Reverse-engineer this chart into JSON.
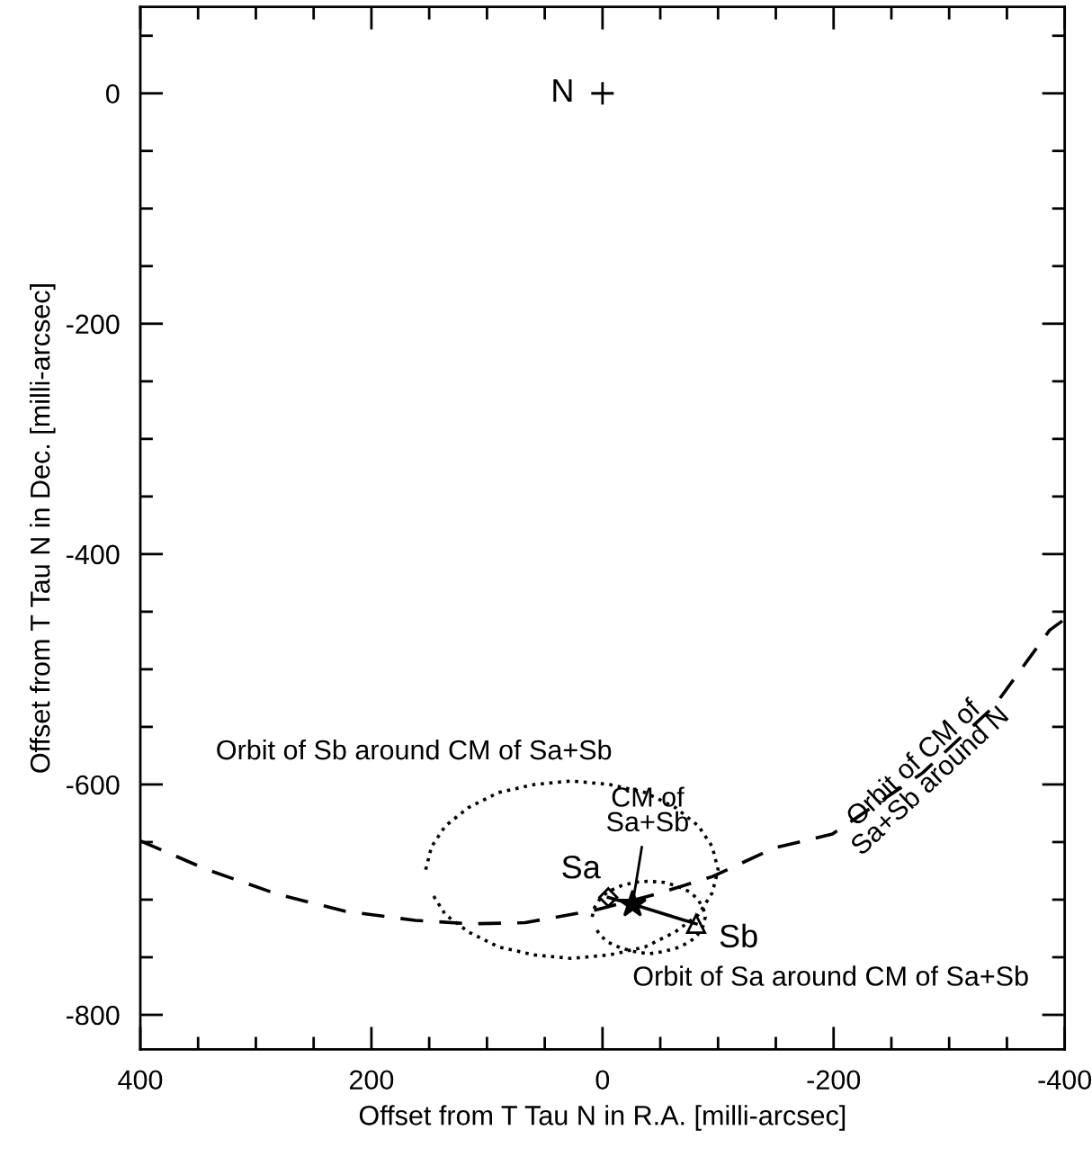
{
  "chart_data": {
    "type": "line",
    "xlabel": "Offset from T Tau N in R.A. [milli-arcsec]",
    "ylabel": "Offset from T Tau N in Dec. [milli-arcsec]",
    "xlim": [
      400,
      -400
    ],
    "ylim": [
      -830,
      75
    ],
    "xticks": [
      400,
      {
        "value": 350,
        "label": null
      },
      {
        "value": 300,
        "label": null
      },
      {
        "value": 250,
        "label": null
      },
      200,
      {
        "value": 150,
        "label": null
      },
      {
        "value": 100,
        "label": null
      },
      {
        "value": 50,
        "label": null
      },
      0,
      {
        "value": -50,
        "label": null
      },
      {
        "value": -100,
        "label": null
      },
      {
        "value": -150,
        "label": null
      },
      -200,
      {
        "value": -250,
        "label": null
      },
      {
        "value": -300,
        "label": null
      },
      {
        "value": -350,
        "label": null
      },
      -400
    ],
    "yticks": [
      {
        "value": 50,
        "label": null
      },
      0,
      {
        "value": -50,
        "label": null
      },
      {
        "value": -100,
        "label": null
      },
      {
        "value": -150,
        "label": null
      },
      -200,
      {
        "value": -250,
        "label": null
      },
      {
        "value": -300,
        "label": null
      },
      {
        "value": -350,
        "label": null
      },
      -400,
      {
        "value": -450,
        "label": null
      },
      {
        "value": -500,
        "label": null
      },
      {
        "value": -550,
        "label": null
      },
      -600,
      {
        "value": -650,
        "label": null
      },
      {
        "value": -700,
        "label": null
      },
      {
        "value": -750,
        "label": null
      },
      -800
    ],
    "grid": false,
    "legend": false,
    "series": [
      {
        "line_style": "dashed",
        "marker": "none",
        "color": "#000000",
        "x": [
          400,
          342,
          282,
          223,
          162,
          114,
          67,
          6,
          -47,
          -95,
          -149,
          -199,
          -277,
          -339,
          -387,
          -398
        ],
        "values": [
          -649,
          -674,
          -695,
          -710,
          -718,
          -721,
          -720,
          -709,
          -695,
          -680,
          -655,
          -643,
          -590,
          -532,
          -466,
          -458
        ]
      },
      {
        "line_style": "dotted",
        "marker": "none",
        "color": "#000000",
        "x": [
          153,
          148,
          136,
          116,
          90,
          59,
          27,
          -6,
          -37,
          -63,
          -83,
          -95,
          -100,
          -95,
          -83,
          -63,
          -37,
          -6,
          27,
          59,
          90,
          116,
          136,
          148
        ],
        "values": [
          -674,
          -654,
          -636,
          -620,
          -607,
          -600,
          -597,
          -600,
          -607,
          -620,
          -636,
          -654,
          -674,
          -694,
          -713,
          -728,
          -741,
          -748,
          -751,
          -748,
          -741,
          -728,
          -713,
          -694
        ]
      },
      {
        "line_style": "dotted",
        "marker": "none",
        "color": "#000000",
        "x": [
          9,
          7,
          2,
          -5,
          -16,
          -27,
          -40,
          -53,
          -64,
          -75,
          -82,
          -87,
          -89,
          -87,
          -82,
          -75,
          -64,
          -53,
          -40,
          -27,
          -16,
          -5,
          2,
          7
        ],
        "values": [
          -715,
          -707,
          -699,
          -693,
          -688,
          -685,
          -684,
          -685,
          -688,
          -693,
          -699,
          -707,
          -715,
          -723,
          -731,
          -737,
          -742,
          -745,
          -747,
          -745,
          -742,
          -737,
          -731,
          -723
        ]
      },
      {
        "line_style": "solid",
        "marker": "none",
        "color": "#000000",
        "x": [
          -5,
          -26,
          -81
        ],
        "values": [
          -698,
          -704,
          -721
        ]
      },
      {
        "type": "scatter",
        "marker": "cross",
        "color": "#000000",
        "x": [
          0
        ],
        "values": [
          0
        ]
      },
      {
        "type": "scatter",
        "marker": "star",
        "color": "#000000",
        "x": [
          -26
        ],
        "values": [
          -704
        ]
      },
      {
        "type": "scatter",
        "marker": "diamond",
        "color": "#000000",
        "x": [
          -5
        ],
        "values": [
          -698
        ]
      },
      {
        "type": "scatter",
        "marker": "triangle",
        "color": "#000000",
        "x": [
          -81
        ],
        "values": [
          -721
        ]
      }
    ],
    "annotations": [
      {
        "text": "N",
        "x": 0,
        "y": 0
      },
      "Orbit of Sb around CM of Sa+Sb",
      {
        "text": "CM of\nSa+Sb",
        "x": -26,
        "y": -704
      },
      {
        "text": "Sa",
        "x": -5,
        "y": -698
      },
      {
        "text": "Sb",
        "x": -81,
        "y": -721
      },
      "Orbit of Sa around CM of Sa+Sb",
      {
        "text": "Orbit of CM of\nSa+Sb around N",
        "x": -277,
        "y": -590
      }
    ]
  }
}
